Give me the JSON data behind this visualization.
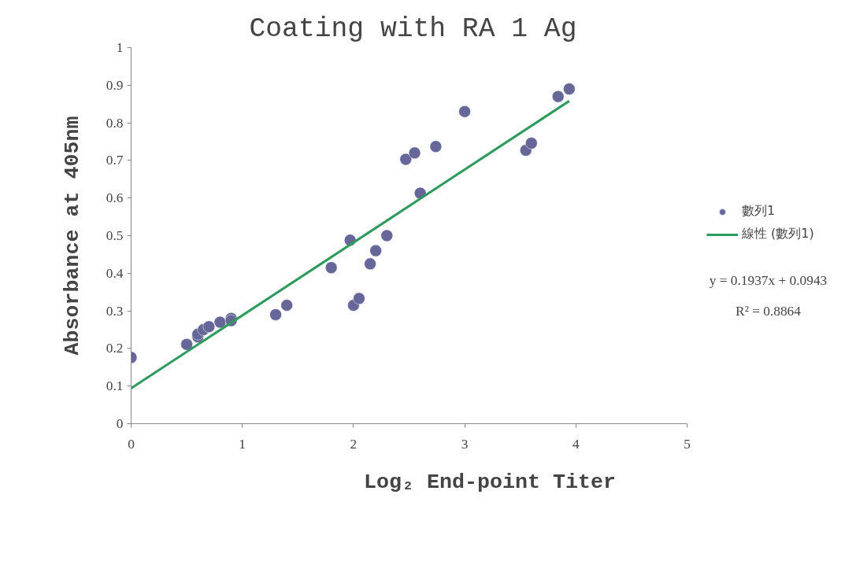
{
  "chart_data": {
    "type": "scatter",
    "title": "Coating with RA 1 Ag",
    "xlabel": "Log₂ End-point Titer",
    "ylabel": "Absorbance at 405nm",
    "xlim": [
      0,
      5
    ],
    "xticks": [
      0,
      1,
      2,
      3,
      4,
      5
    ],
    "ylim": [
      0,
      1
    ],
    "yticks": [
      0,
      0.1,
      0.2,
      0.3,
      0.4,
      0.5,
      0.6,
      0.7,
      0.8,
      0.9,
      1
    ],
    "grid": false,
    "legend": "right",
    "marker": "circle",
    "series": [
      {
        "name": "數列1",
        "color": "#666699",
        "x": [
          0,
          0.5,
          0.6,
          0.6,
          0.65,
          0.7,
          0.8,
          0.9,
          0.9,
          1.3,
          1.4,
          1.8,
          1.97,
          2.0,
          2.05,
          2.15,
          2.2,
          2.3,
          2.47,
          2.55,
          2.6,
          2.74,
          3.0,
          3.55,
          3.6,
          3.84,
          3.94
        ],
        "values": [
          0.176,
          0.211,
          0.231,
          0.238,
          0.25,
          0.258,
          0.27,
          0.28,
          0.274,
          0.29,
          0.315,
          0.415,
          0.488,
          0.315,
          0.333,
          0.425,
          0.46,
          0.5,
          0.703,
          0.72,
          0.613,
          0.737,
          0.83,
          0.727,
          0.746,
          0.87,
          0.89
        ]
      },
      {
        "name": "線性 (數列1)",
        "type": "line",
        "marker": "none",
        "color": "#2e9a5e",
        "line_style": "solid",
        "x": [
          0,
          3.94
        ],
        "values": [
          0.094,
          0.858
        ]
      }
    ],
    "annotations": [
      "y = 0.1937x + 0.0943",
      "R² = 0.8864"
    ]
  }
}
